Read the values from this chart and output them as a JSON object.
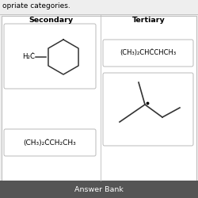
{
  "title_text": "opriate categories.",
  "secondary_label": "Secondary",
  "tertiary_label": "Tertiary",
  "answer_bank_label": "Answer Bank",
  "bg_color": "#eeeeee",
  "footer_bg": "#555555",
  "footer_text_color": "#ffffff",
  "panel_bg": "#f9f9f9",
  "box_bg": "#ffffff",
  "border_color": "#bbbbbb",
  "inner_border": "#cccccc",
  "text_color": "#222222",
  "label1": "H₂Ċ",
  "label2": "(CH₃)₂ĊCH₂CH₃",
  "label3": "(CH₃)₂CHĊCHCH₃",
  "figsize": [
    2.5,
    2.5
  ],
  "dpi": 100
}
